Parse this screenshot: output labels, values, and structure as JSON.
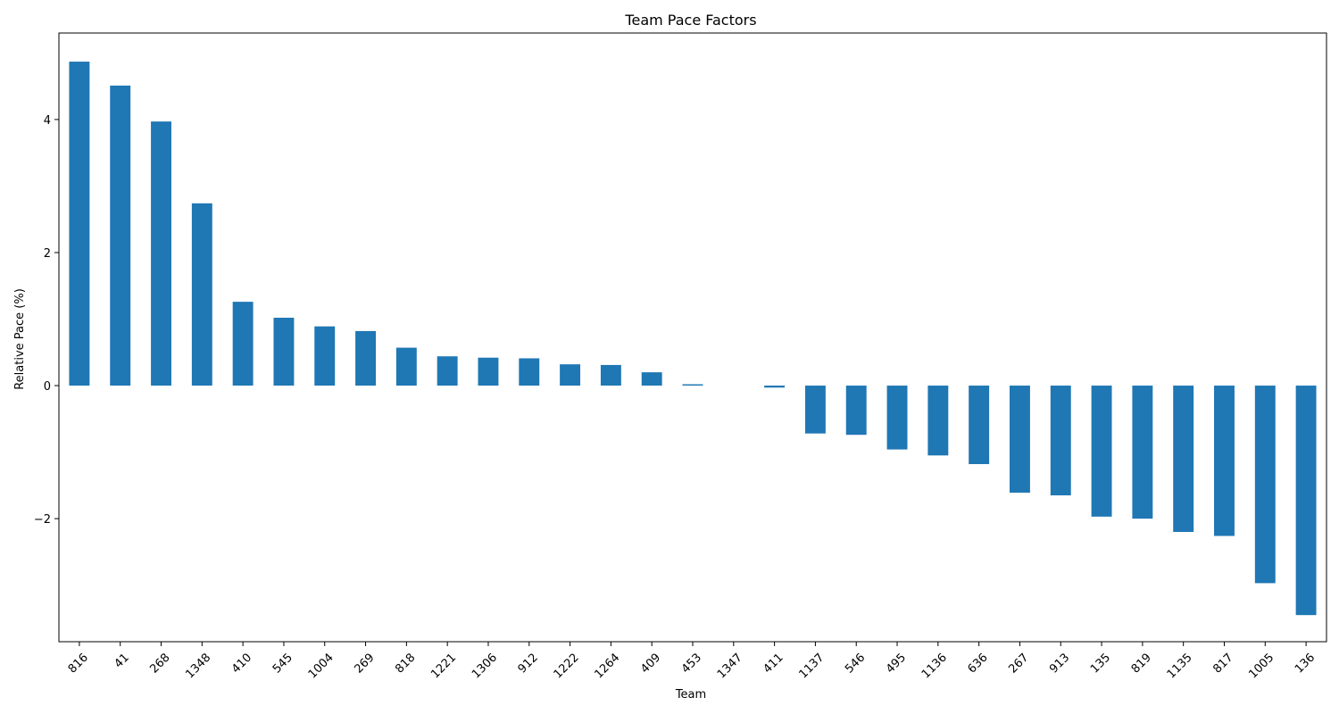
{
  "chart_data": {
    "type": "bar",
    "title": "Team Pace Factors",
    "xlabel": "Team",
    "ylabel": "Relative Pace (%)",
    "categories": [
      "816",
      "41",
      "268",
      "1348",
      "410",
      "545",
      "1004",
      "269",
      "818",
      "1221",
      "1306",
      "912",
      "1222",
      "1264",
      "409",
      "453",
      "1347",
      "411",
      "1137",
      "546",
      "495",
      "1136",
      "636",
      "267",
      "913",
      "135",
      "819",
      "1135",
      "817",
      "1005",
      "136"
    ],
    "values": [
      4.87,
      4.51,
      3.97,
      2.74,
      1.26,
      1.02,
      0.89,
      0.82,
      0.57,
      0.44,
      0.42,
      0.41,
      0.32,
      0.31,
      0.2,
      0.02,
      0.0,
      -0.03,
      -0.72,
      -0.74,
      -0.96,
      -1.05,
      -1.18,
      -1.61,
      -1.65,
      -1.97,
      -2.0,
      -2.2,
      -2.26,
      -2.97,
      -3.45
    ],
    "ylim": [
      -3.85,
      5.3
    ],
    "yticks": [
      -2,
      0,
      2,
      4
    ],
    "ytick_labels": [
      "−2",
      "0",
      "2",
      "4"
    ],
    "grid": false,
    "legend": "none",
    "colors": {
      "bar": "#1f77b4",
      "axis": "#000000",
      "background": "#ffffff"
    }
  }
}
